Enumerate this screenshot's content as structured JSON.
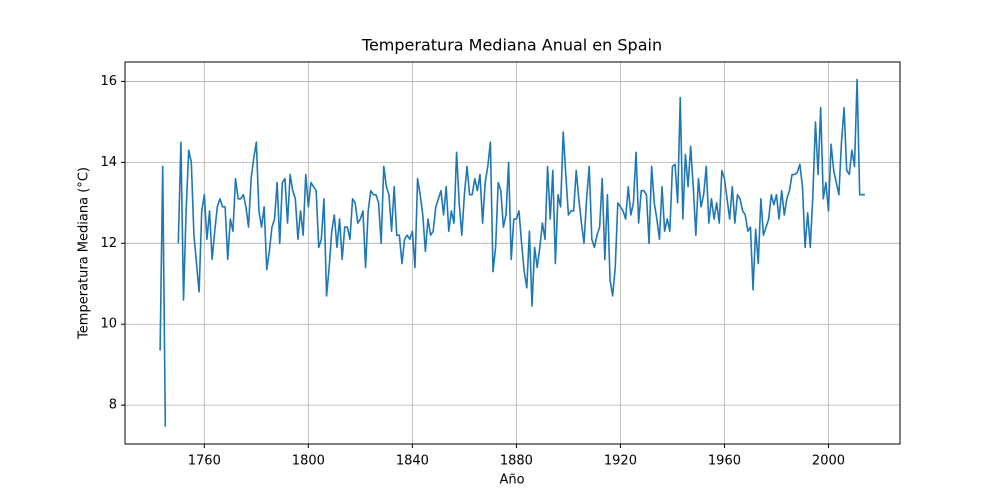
{
  "chart_data": {
    "type": "line",
    "title": "Temperatura Mediana Anual en Spain",
    "xlabel": "Año",
    "ylabel": "Temperatura Mediana (°C)",
    "color": "#1f77b4",
    "grid": true,
    "xlim": [
      1729.5,
      2027.5
    ],
    "ylim": [
      7.04,
      16.48
    ],
    "xticks": [
      1760,
      1800,
      1840,
      1880,
      1920,
      1960,
      2000
    ],
    "yticks": [
      8,
      10,
      12,
      14,
      16
    ],
    "x": [
      1743,
      1744,
      1745,
      1746,
      1747,
      1748,
      1749,
      1750,
      1751,
      1752,
      1753,
      1754,
      1755,
      1756,
      1757,
      1758,
      1759,
      1760,
      1761,
      1762,
      1763,
      1764,
      1765,
      1766,
      1767,
      1768,
      1769,
      1770,
      1771,
      1772,
      1773,
      1774,
      1775,
      1776,
      1777,
      1778,
      1779,
      1780,
      1781,
      1782,
      1783,
      1784,
      1785,
      1786,
      1787,
      1788,
      1789,
      1790,
      1791,
      1792,
      1793,
      1794,
      1795,
      1796,
      1797,
      1798,
      1799,
      1800,
      1801,
      1802,
      1803,
      1804,
      1805,
      1806,
      1807,
      1808,
      1809,
      1810,
      1811,
      1812,
      1813,
      1814,
      1815,
      1816,
      1817,
      1818,
      1819,
      1820,
      1821,
      1822,
      1823,
      1824,
      1825,
      1826,
      1827,
      1828,
      1829,
      1830,
      1831,
      1832,
      1833,
      1834,
      1835,
      1836,
      1837,
      1838,
      1839,
      1840,
      1841,
      1842,
      1843,
      1844,
      1845,
      1846,
      1847,
      1848,
      1849,
      1850,
      1851,
      1852,
      1853,
      1854,
      1855,
      1856,
      1857,
      1858,
      1859,
      1860,
      1861,
      1862,
      1863,
      1864,
      1865,
      1866,
      1867,
      1868,
      1869,
      1870,
      1871,
      1872,
      1873,
      1874,
      1875,
      1876,
      1877,
      1878,
      1879,
      1880,
      1881,
      1882,
      1883,
      1884,
      1885,
      1886,
      1887,
      1888,
      1889,
      1890,
      1891,
      1892,
      1893,
      1894,
      1895,
      1896,
      1897,
      1898,
      1899,
      1900,
      1901,
      1902,
      1903,
      1904,
      1905,
      1906,
      1907,
      1908,
      1909,
      1910,
      1911,
      1912,
      1913,
      1914,
      1915,
      1916,
      1917,
      1918,
      1919,
      1920,
      1921,
      1922,
      1923,
      1924,
      1925,
      1926,
      1927,
      1928,
      1929,
      1930,
      1931,
      1932,
      1933,
      1934,
      1935,
      1936,
      1937,
      1938,
      1939,
      1940,
      1941,
      1942,
      1943,
      1944,
      1945,
      1946,
      1947,
      1948,
      1949,
      1950,
      1951,
      1952,
      1953,
      1954,
      1955,
      1956,
      1957,
      1958,
      1959,
      1960,
      1961,
      1962,
      1963,
      1964,
      1965,
      1966,
      1967,
      1968,
      1969,
      1970,
      1971,
      1972,
      1973,
      1974,
      1975,
      1976,
      1977,
      1978,
      1979,
      1980,
      1981,
      1982,
      1983,
      1984,
      1985,
      1986,
      1987,
      1988,
      1989,
      1990,
      1991,
      1992,
      1993,
      1994,
      1995,
      1996,
      1997,
      1998,
      1999,
      2000,
      2001,
      2002,
      2003,
      2004,
      2005,
      2006,
      2007,
      2008,
      2009,
      2010,
      2011,
      2012,
      2013,
      2014
    ],
    "values": [
      9.35,
      13.9,
      7.47,
      null,
      null,
      null,
      null,
      12.0,
      14.5,
      10.6,
      12.8,
      14.3,
      14.0,
      12.2,
      11.5,
      10.8,
      12.8,
      13.2,
      12.1,
      12.8,
      11.6,
      12.3,
      12.9,
      13.1,
      12.9,
      12.9,
      11.6,
      12.6,
      12.3,
      13.6,
      13.1,
      13.1,
      13.2,
      12.9,
      12.4,
      13.6,
      14.1,
      14.5,
      12.8,
      12.4,
      12.9,
      11.35,
      11.8,
      12.4,
      12.6,
      13.5,
      12.0,
      13.5,
      13.6,
      12.5,
      13.7,
      13.3,
      13.1,
      12.1,
      12.8,
      12.2,
      13.7,
      12.9,
      13.5,
      13.4,
      13.3,
      11.9,
      12.1,
      13.1,
      10.7,
      11.4,
      12.3,
      12.7,
      11.9,
      12.6,
      11.6,
      12.4,
      12.4,
      12.1,
      13.1,
      13.0,
      12.5,
      12.6,
      12.8,
      11.4,
      12.8,
      13.3,
      13.2,
      13.2,
      13.0,
      12.0,
      13.9,
      13.4,
      13.2,
      12.3,
      13.4,
      12.2,
      12.2,
      11.5,
      12.1,
      12.2,
      12.1,
      12.3,
      11.4,
      13.6,
      13.2,
      12.7,
      11.8,
      12.6,
      12.2,
      12.3,
      12.9,
      13.1,
      13.3,
      12.7,
      13.4,
      12.3,
      12.8,
      12.5,
      14.25,
      13.0,
      12.2,
      13.2,
      13.9,
      13.2,
      13.2,
      13.6,
      13.3,
      13.7,
      12.5,
      13.5,
      13.9,
      14.5,
      11.3,
      11.9,
      13.5,
      13.3,
      12.4,
      12.7,
      14.0,
      11.6,
      12.6,
      12.6,
      12.8,
      12.0,
      11.3,
      10.9,
      12.3,
      10.45,
      11.9,
      11.4,
      11.9,
      12.5,
      12.1,
      13.9,
      12.6,
      13.8,
      11.5,
      13.2,
      12.9,
      14.75,
      13.7,
      12.7,
      12.8,
      12.8,
      13.8,
      13.1,
      12.5,
      12.0,
      13.1,
      13.9,
      12.1,
      11.9,
      12.2,
      12.4,
      13.6,
      11.6,
      13.2,
      11.1,
      10.7,
      11.4,
      13.0,
      12.9,
      12.8,
      12.6,
      13.4,
      12.7,
      13.0,
      14.25,
      12.5,
      13.3,
      13.3,
      13.2,
      12.0,
      13.9,
      13.0,
      12.6,
      12.1,
      13.4,
      12.3,
      12.6,
      12.3,
      13.9,
      13.95,
      13.0,
      15.6,
      12.6,
      14.2,
      13.4,
      14.4,
      13.4,
      12.2,
      13.6,
      12.9,
      13.2,
      13.9,
      12.5,
      13.1,
      12.6,
      13.0,
      12.5,
      13.8,
      13.6,
      13.1,
      12.6,
      13.4,
      12.5,
      13.2,
      13.1,
      12.8,
      12.7,
      12.3,
      12.4,
      10.85,
      12.35,
      11.5,
      13.1,
      12.2,
      12.4,
      12.6,
      13.2,
      12.95,
      13.2,
      12.6,
      13.3,
      12.7,
      13.1,
      13.3,
      13.7,
      13.7,
      13.75,
      13.95,
      13.4,
      11.9,
      12.75,
      11.9,
      13.2,
      15.0,
      13.7,
      15.35,
      13.1,
      13.5,
      12.8,
      14.45,
      13.8,
      13.5,
      13.2,
      14.5,
      15.35,
      13.8,
      13.7,
      14.3,
      13.9,
      16.05,
      13.2,
      13.2,
      13.2
    ]
  }
}
